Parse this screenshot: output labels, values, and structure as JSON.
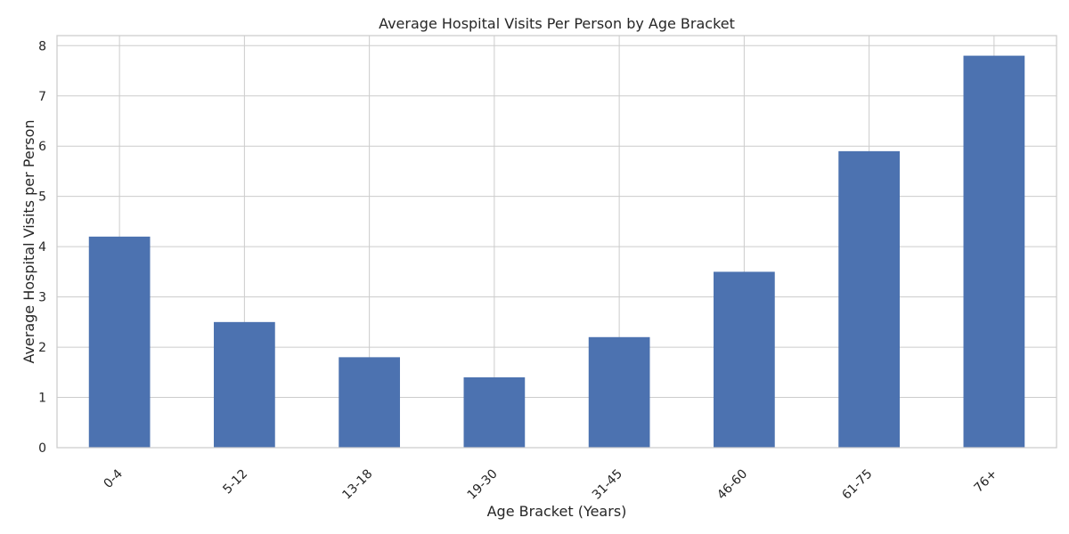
{
  "chart_data": {
    "type": "bar",
    "title": "Average Hospital Visits Per Person by Age Bracket",
    "xlabel": "Age Bracket (Years)",
    "ylabel": "Average Hospital Visits per Person",
    "categories": [
      "0-4",
      "5-12",
      "13-18",
      "19-30",
      "31-45",
      "46-60",
      "61-75",
      "76+"
    ],
    "values": [
      4.2,
      2.5,
      1.8,
      1.4,
      2.2,
      3.5,
      5.9,
      7.8
    ],
    "ylim": [
      0,
      8.2
    ],
    "yticks": [
      0,
      1,
      2,
      3,
      4,
      5,
      6,
      7,
      8
    ],
    "grid": true,
    "legend": "none",
    "colors": {
      "bar": "#4c72b0",
      "grid": "#cccccc",
      "axes_edge": "#cccccc",
      "text": "#262626"
    }
  }
}
